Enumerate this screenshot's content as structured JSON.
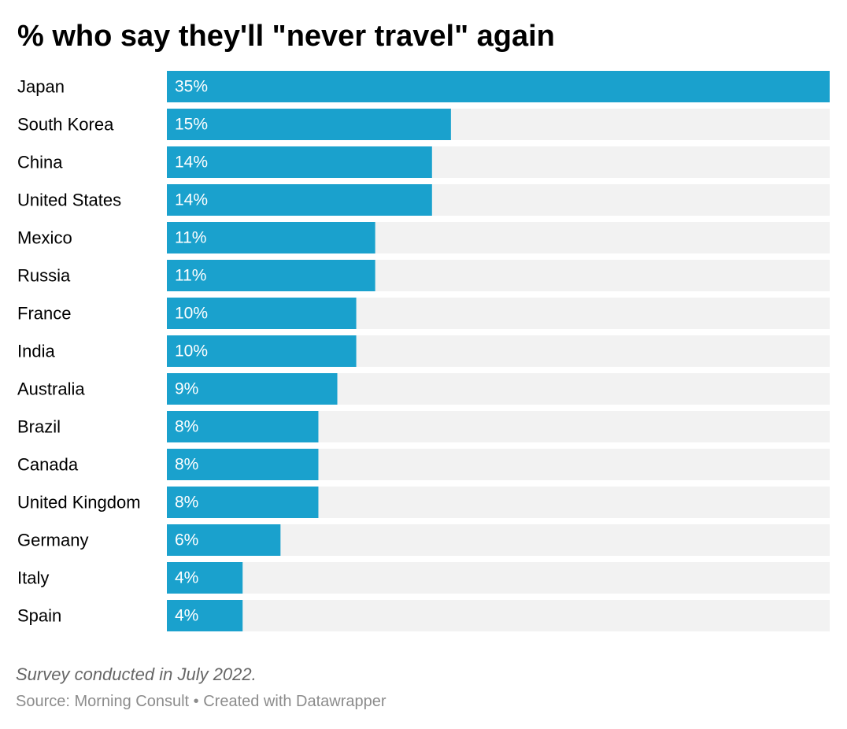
{
  "title": "% who say they'll \"never travel\" again",
  "chart_data": {
    "type": "bar",
    "orientation": "horizontal",
    "categories": [
      "Japan",
      "South Korea",
      "China",
      "United States",
      "Mexico",
      "Russia",
      "France",
      "India",
      "Australia",
      "Brazil",
      "Canada",
      "United Kingdom",
      "Germany",
      "Italy",
      "Spain"
    ],
    "values": [
      35,
      15,
      14,
      14,
      11,
      11,
      10,
      10,
      9,
      8,
      8,
      8,
      6,
      4,
      4
    ],
    "value_labels": [
      "35%",
      "15%",
      "14%",
      "14%",
      "11%",
      "11%",
      "10%",
      "10%",
      "9%",
      "8%",
      "8%",
      "8%",
      "6%",
      "4%",
      "4%"
    ],
    "xlim": [
      0,
      35
    ],
    "bar_color": "#1aa1cd",
    "track_color": "#f2f2f2",
    "grid": false,
    "legend": "none"
  },
  "footer": {
    "note": "Survey conducted in July 2022.",
    "source": "Source: Morning Consult • Created with Datawrapper"
  }
}
